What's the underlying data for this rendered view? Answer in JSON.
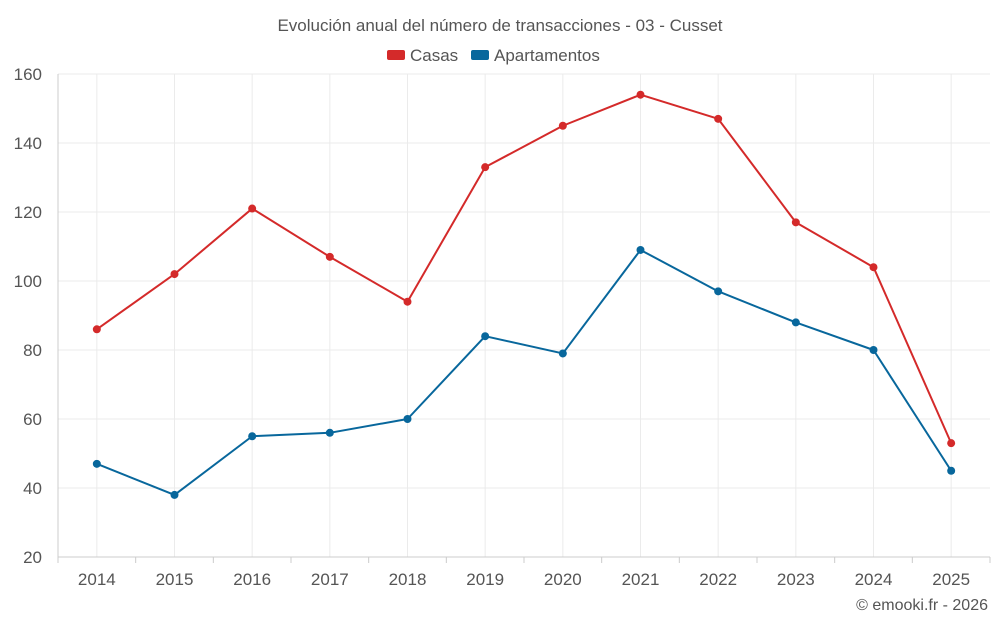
{
  "chart_data": {
    "type": "line",
    "title": "Evolución anual del número de transacciones - 03 - Cusset",
    "categories": [
      "2014",
      "2015",
      "2016",
      "2017",
      "2018",
      "2019",
      "2020",
      "2021",
      "2022",
      "2023",
      "2024",
      "2025"
    ],
    "series": [
      {
        "name": "Casas",
        "color": "#d42a2a",
        "values": [
          86,
          102,
          121,
          107,
          94,
          133,
          145,
          154,
          147,
          117,
          104,
          53
        ]
      },
      {
        "name": "Apartamentos",
        "color": "#08679c",
        "values": [
          47,
          38,
          55,
          56,
          60,
          84,
          79,
          109,
          97,
          88,
          80,
          45
        ]
      }
    ],
    "ylim": [
      20,
      160
    ],
    "yticks": [
      20,
      40,
      60,
      80,
      100,
      120,
      140,
      160
    ],
    "xlabel": "",
    "ylabel": "",
    "grid": true,
    "legend_position": "top-center"
  },
  "credit": "© emooki.fr - 2026",
  "colors": {
    "grid": "#ebebeb",
    "axis": "#cccccc",
    "text": "#555555"
  }
}
